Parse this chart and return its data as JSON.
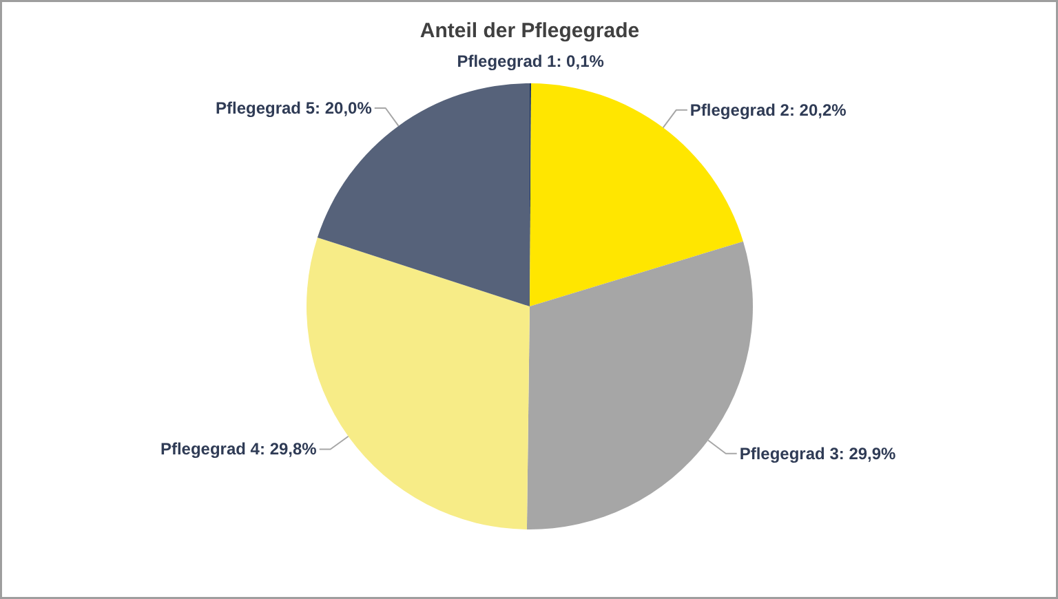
{
  "chart_data": {
    "type": "pie",
    "title": "Anteil der Pflegegrade",
    "categories": [
      "Pflegegrad 1",
      "Pflegegrad 2",
      "Pflegegrad 3",
      "Pflegegrad 4",
      "Pflegegrad 5"
    ],
    "values": [
      0.1,
      20.2,
      29.9,
      29.8,
      20.0
    ],
    "value_labels": [
      "0,1%",
      "20,2%",
      "29,9%",
      "29,8%",
      "20,0%"
    ],
    "colors": [
      "#1f3864",
      "#ffe600",
      "#a6a6a6",
      "#f7ec87",
      "#56627a"
    ]
  }
}
